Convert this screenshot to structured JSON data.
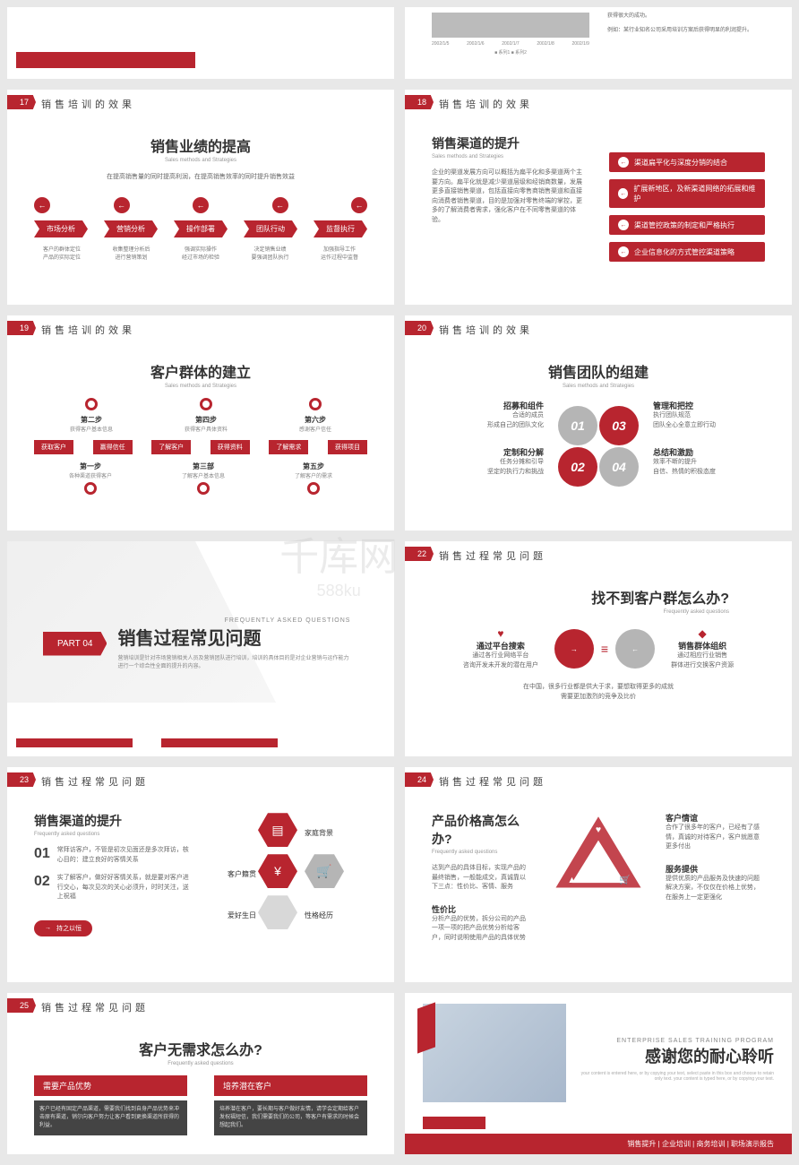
{
  "colors": {
    "red": "#b8252f",
    "gray": "#b5b5b5",
    "lightgray": "#d8d8d8",
    "text": "#333",
    "muted": "#666"
  },
  "watermark": {
    "logo": "千库网",
    "sub": "588ku"
  },
  "slides": {
    "s16_top": {
      "chart_dates": [
        "2002/1/5",
        "2002/1/6",
        "2002/1/7",
        "2002/1/8",
        "2002/1/9"
      ],
      "legend": [
        "系列1",
        "系列2"
      ],
      "note1": "获得很大的成功。",
      "note2": "例如：某行业知名公司采用培训方案后获得明显的利润提升。"
    },
    "s17": {
      "num": "17",
      "title": "销售培训的效果",
      "heading": "销售业绩的提高",
      "sub": "Sales methods and Strategies",
      "desc": "在提高销售量的同时提高利润，在提高销售效率的同时提升销售效益",
      "steps": [
        {
          "label": "市场分析",
          "d1": "客户的群体定位",
          "d2": "产品的实际定位"
        },
        {
          "label": "营销分析",
          "d1": "收集整理分析后",
          "d2": "进行营销策划"
        },
        {
          "label": "操作部署",
          "d1": "强调实际操作",
          "d2": "经过市场的检验"
        },
        {
          "label": "团队行动",
          "d1": "决定销售业绩",
          "d2": "要强调团队执行"
        },
        {
          "label": "监督执行",
          "d1": "加强指导工作",
          "d2": "运作过程中监督"
        }
      ]
    },
    "s18": {
      "num": "18",
      "title": "销售培训的效果",
      "heading": "销售渠道的提升",
      "sub": "Sales methods and Strategies",
      "desc": "企业的渠道发展方向可以概括为扁平化和多渠道两个主要方向。扁平化就是减少渠道层级和经销商数量，发展更多直接销售渠道，包括直接向零售商销售渠道和直接向消费者销售渠道，目的是加强对零售终端的掌控，更多的了解消费者需求，强化客户在不同零售渠道的体验。",
      "items": [
        "渠道扁平化与深度分销的结合",
        "扩展新地区，及新渠道网络的拓展和维护",
        "渠道管控政策的制定和严格执行",
        "企业信息化的方式管控渠道策略"
      ]
    },
    "s19": {
      "num": "19",
      "title": "销售培训的效果",
      "heading": "客户群体的建立",
      "sub": "Sales methods and Strategies",
      "top_steps": [
        {
          "t": "第二步",
          "d": "获得客户基本信息"
        },
        {
          "t": "第四步",
          "d": "获得客户具体资料"
        },
        {
          "t": "第六步",
          "d": "感谢客户信任"
        }
      ],
      "tags": [
        "获取客户",
        "赢得信任",
        "了解客户",
        "获得资料",
        "了解需求",
        "获得项目"
      ],
      "bottom_steps": [
        {
          "t": "第一步",
          "d": "各种渠道获得客户"
        },
        {
          "t": "第三部",
          "d": "了解客户基本信息"
        },
        {
          "t": "第五步",
          "d": "了解客户的需求"
        }
      ]
    },
    "s20": {
      "num": "20",
      "title": "销售培训的效果",
      "heading": "销售团队的组建",
      "sub": "Sales methods and Strategies",
      "items": [
        {
          "t": "招募和组件",
          "d": "合适的成员\n形成自己的团队文化"
        },
        {
          "t": "管理和把控",
          "d": "执行团队规范\n团队全心全意立即行动"
        },
        {
          "t": "定制和分解",
          "d": "任务分摊和引导\n坚定的执行力和挑战"
        },
        {
          "t": "总结和激励",
          "d": "效率不断的提升\n自信、热情的积极态度"
        }
      ],
      "circles": [
        "01",
        "03",
        "02",
        "04"
      ]
    },
    "s21": {
      "part": "PART 04",
      "title": "销售过程常见问题",
      "sub": "FREQUENTLY ASKED QUESTIONS",
      "desc": "营销培训是针对市场营销相关人员及营销团队进行培训，培训的具体目的是对企业营销与运作能力进行一个综合性全面的提升的内容。"
    },
    "s22": {
      "num": "22",
      "title": "销售过程常见问题",
      "heading": "找不到客户群怎么办?",
      "sub": "Frequently asked questions",
      "left": {
        "t": "通过平台搜索",
        "d": "通过各行业网络平台\n咨询开发未开发的潜在用户"
      },
      "right": {
        "t": "销售群体组织",
        "d": "通过相应行业销售\n群体进行交换客户资源"
      },
      "bottom": "在中国，很多行业都是供大于求，要想取得更多的成就\n需要更加激烈的竞争及比价"
    },
    "s23": {
      "num": "23",
      "title": "销售过程常见问题",
      "heading": "销售渠道的提升",
      "sub": "Frequently asked questions",
      "items": [
        {
          "n": "01",
          "d": "常拜访客户，不管是初次见面还是多次拜访，核心目的：建立良好的客情关系"
        },
        {
          "n": "02",
          "d": "实了解客户，做好好客情关系，就是要对客户进行交心，每次见次的关心必须升，时时关注，送上祝福"
        }
      ],
      "tag": "持之以恒",
      "hexs": [
        "家庭背景",
        "客户籍贯",
        "爱好生日",
        "性格经历"
      ]
    },
    "s24": {
      "num": "24",
      "title": "销售过程常见问题",
      "heading": "产品价格高怎么办?",
      "sub": "Frequently asked questions",
      "desc": "达到产品的具体目标，实现产品的最终销售，一般能成交，真诚靠以下三点：性价比、客情、服务",
      "left": {
        "t": "性价比",
        "d": "分析产品的优势，拆分公司的产品一项一项的把产品优势分析给客户，同时说明使用产品的具体优势"
      },
      "r1": {
        "t": "客户情谊",
        "d": "合作了很多年的客户，已经有了感情，真诚的对待客户，客户就愿意更多付出"
      },
      "r2": {
        "t": "服务提供",
        "d": "提供优质的产品服务及快速的问题解决方案，不仅仅在价格上优势，在服务上一定更强化"
      }
    },
    "s25": {
      "num": "25",
      "title": "销售过程常见问题",
      "heading": "客户无需求怎么办?",
      "sub": "Frequently asked questions",
      "b1": {
        "t": "需要产品优势",
        "d": "客户已经有固定产品渠道，需要我们找到自身产品优势来冲击原有渠道，销尔向客户努力让客户看到更换渠道所获得的利益。"
      },
      "b2": {
        "t": "培养潜在客户",
        "d": "培养潜在客户，要长期与客户做好友情，请学会定期给客户发祝福短信，我们需要我们的公司，等客户有需求的时候会想起我们。"
      }
    },
    "s26": {
      "sub": "ENTERPRISE SALES TRAINING PROGRAM",
      "title": "感谢您的耐心聆听",
      "desc": "your content is entered here, or by copying your text, select paste in this box and choose to retain only text. your content is typed here, or by copying your text.",
      "tags": [
        "销售提升",
        "企业培训",
        "商务培训",
        "职场演示报告"
      ]
    }
  }
}
